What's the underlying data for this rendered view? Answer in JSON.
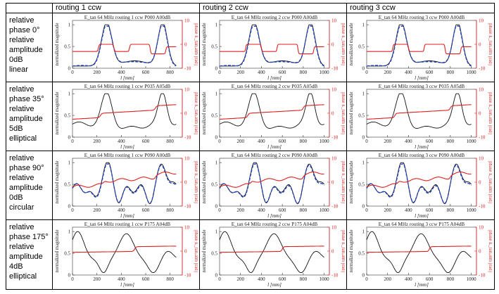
{
  "table": {
    "columns": [
      "routing 1 ccw",
      "routing 2 ccw",
      "routing 3 ccw"
    ],
    "rows": [
      {
        "label_lines": [
          "relative",
          "phase 0°",
          "relative",
          "amplitude",
          "0dB",
          "linear"
        ]
      },
      {
        "label_lines": [
          "relative",
          "phase 35°",
          "relative",
          "amplitude",
          "5dB",
          "elliptical"
        ]
      },
      {
        "label_lines": [
          "relative",
          "phase 90°",
          "relative",
          "amplitude",
          "0dB",
          "circular"
        ]
      },
      {
        "label_lines": [
          "relative",
          "phase 175°",
          "relative",
          "amplitude",
          "4dB",
          "elliptical"
        ]
      }
    ]
  },
  "plot_common": {
    "ylabel_left": "normalized magnitude",
    "ylabel_right": "phase E_tan,atm [rad]",
    "xlabel": "l [mm]",
    "y_ticks_left": [
      "0",
      "0.5",
      "1"
    ],
    "y_ticks_right": [
      "-10",
      "0",
      "10"
    ],
    "x_ticks_r1": [
      "0",
      "200",
      "400",
      "600",
      "800"
    ],
    "x_ticks_r23": [
      "0",
      "200",
      "400",
      "600",
      "800",
      "1000"
    ],
    "colors": {
      "magnitude": "#111111",
      "reference": "#1f3fbf",
      "phase": "#e02020",
      "axis_right": "#e02020"
    }
  },
  "chart_data": [
    {
      "type": "line",
      "title": "E_tan 64 MHz routing 1 ccw P000 A00dB",
      "xlim": [
        0,
        900
      ],
      "ylim": [
        0,
        1.1
      ],
      "y2lim": [
        -10,
        10
      ],
      "profile": "linear",
      "has_reference": true
    },
    {
      "type": "line",
      "title": "E_tan 64 MHz routing 2 ccw P000 A00dB",
      "xlim": [
        0,
        1050
      ],
      "ylim": [
        0,
        1.1
      ],
      "y2lim": [
        -10,
        10
      ],
      "profile": "linear",
      "has_reference": true
    },
    {
      "type": "line",
      "title": "E_tan 64 MHz routing 3 ccw P000 A00dB",
      "xlim": [
        0,
        1050
      ],
      "ylim": [
        0,
        1.1
      ],
      "y2lim": [
        -10,
        10
      ],
      "profile": "linear",
      "has_reference": true
    },
    {
      "type": "line",
      "title": "E_tan 64 MHz routing 1 ccw P035 A05dB",
      "xlim": [
        0,
        900
      ],
      "ylim": [
        0,
        1.1
      ],
      "y2lim": [
        -10,
        10
      ],
      "profile": "ellip35",
      "has_reference": false
    },
    {
      "type": "line",
      "title": "E_tan 64 MHz routing 2 ccw P035 A05dB",
      "xlim": [
        0,
        1050
      ],
      "ylim": [
        0,
        1.1
      ],
      "y2lim": [
        -10,
        10
      ],
      "profile": "ellip35",
      "has_reference": false
    },
    {
      "type": "line",
      "title": "E_tan 64 MHz routing 3 ccw P035 A05dB",
      "xlim": [
        0,
        1050
      ],
      "ylim": [
        0,
        1.1
      ],
      "y2lim": [
        -10,
        10
      ],
      "profile": "ellip35",
      "has_reference": false
    },
    {
      "type": "line",
      "title": "E_tan 64 MHz routing 1 ccw P090 A00dB",
      "xlim": [
        0,
        900
      ],
      "ylim": [
        0,
        1.1
      ],
      "y2lim": [
        -10,
        10
      ],
      "profile": "circular",
      "has_reference": true
    },
    {
      "type": "line",
      "title": "E_tan 64 MHz routing 2 ccw P090 A00dB",
      "xlim": [
        0,
        1050
      ],
      "ylim": [
        0,
        1.1
      ],
      "y2lim": [
        -10,
        10
      ],
      "profile": "circular",
      "has_reference": true
    },
    {
      "type": "line",
      "title": "E_tan 64 MHz routing 3 ccw P090 A00dB",
      "xlim": [
        0,
        1050
      ],
      "ylim": [
        0,
        1.1
      ],
      "y2lim": [
        -10,
        10
      ],
      "profile": "circular",
      "has_reference": true
    },
    {
      "type": "line",
      "title": "E_tan 64 MHz routing 1 ccw P175 A04dB",
      "xlim": [
        0,
        900
      ],
      "ylim": [
        0,
        1.1
      ],
      "y2lim": [
        -10,
        10
      ],
      "profile": "ellip175",
      "has_reference": false
    },
    {
      "type": "line",
      "title": "E_tan 64 MHz routing 2 ccw P175 A04dB",
      "xlim": [
        0,
        1050
      ],
      "ylim": [
        0,
        1.1
      ],
      "y2lim": [
        -10,
        10
      ],
      "profile": "ellip175",
      "has_reference": false
    },
    {
      "type": "line",
      "title": "E_tan 64 MHz routing 3 ccw P175 A04dB",
      "xlim": [
        0,
        1050
      ],
      "ylim": [
        0,
        1.1
      ],
      "y2lim": [
        -10,
        10
      ],
      "profile": "ellip175",
      "has_reference": false
    }
  ]
}
